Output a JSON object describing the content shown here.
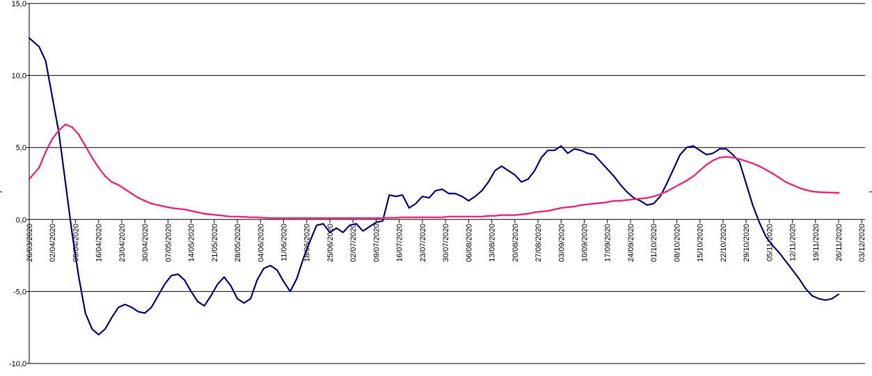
{
  "chart_data": {
    "type": "line",
    "title": "",
    "xlabel": "",
    "ylabel": "",
    "ylim": [
      -10,
      15
    ],
    "grid": "horizontal",
    "legend": "none",
    "x_range": [
      "26/03/2020",
      "04/12/2020"
    ],
    "categories": [
      "26/03/2020",
      "02/04/2020",
      "09/04/2020",
      "16/04/2020",
      "23/04/2020",
      "30/04/2020",
      "07/05/2020",
      "14/05/2020",
      "21/05/2020",
      "28/05/2020",
      "04/06/2020",
      "11/06/2020",
      "18/06/2020",
      "25/06/2020",
      "02/07/2020",
      "09/07/2020",
      "16/07/2020",
      "23/07/2020",
      "30/07/2020",
      "06/08/2020",
      "13/08/2020",
      "20/08/2020",
      "27/08/2020",
      "03/09/2020",
      "10/09/2020",
      "17/09/2020",
      "24/09/2020",
      "01/10/2020",
      "08/10/2020",
      "15/10/2020",
      "22/10/2020",
      "29/10/2020",
      "05/11/2020",
      "12/11/2020",
      "19/11/2020",
      "26/11/2020",
      "03/12/2020"
    ],
    "y_ticks": [
      "15,0",
      "10,0",
      "5,0",
      "0,0",
      "-5,0",
      "-10,0"
    ],
    "y_tick_values": [
      15,
      10,
      5,
      0,
      -5,
      -10
    ],
    "colors": {
      "series_a": "#000080",
      "series_b": "#ee2a7b",
      "grid": "#000000"
    },
    "series": [
      {
        "color": "#000080",
        "points": [
          [
            "26/03/2020",
            12.6
          ],
          [
            "29/03/2020",
            12.0
          ],
          [
            "31/03/2020",
            11.0
          ],
          [
            "02/04/2020",
            8.5
          ],
          [
            "04/04/2020",
            6.0
          ],
          [
            "06/04/2020",
            2.5
          ],
          [
            "08/04/2020",
            -1.0
          ],
          [
            "10/04/2020",
            -4.0
          ],
          [
            "12/04/2020",
            -6.5
          ],
          [
            "14/04/2020",
            -7.6
          ],
          [
            "16/04/2020",
            -8.0
          ],
          [
            "18/04/2020",
            -7.6
          ],
          [
            "20/04/2020",
            -6.8
          ],
          [
            "22/04/2020",
            -6.1
          ],
          [
            "24/04/2020",
            -5.9
          ],
          [
            "26/04/2020",
            -6.1
          ],
          [
            "28/04/2020",
            -6.4
          ],
          [
            "30/04/2020",
            -6.5
          ],
          [
            "02/05/2020",
            -6.1
          ],
          [
            "04/05/2020",
            -5.3
          ],
          [
            "06/05/2020",
            -4.5
          ],
          [
            "08/05/2020",
            -3.9
          ],
          [
            "10/05/2020",
            -3.8
          ],
          [
            "12/05/2020",
            -4.2
          ],
          [
            "14/05/2020",
            -5.0
          ],
          [
            "16/05/2020",
            -5.7
          ],
          [
            "18/05/2020",
            -6.0
          ],
          [
            "20/05/2020",
            -5.3
          ],
          [
            "22/05/2020",
            -4.5
          ],
          [
            "24/05/2020",
            -4.0
          ],
          [
            "26/05/2020",
            -4.6
          ],
          [
            "28/05/2020",
            -5.5
          ],
          [
            "30/05/2020",
            -5.8
          ],
          [
            "01/06/2020",
            -5.5
          ],
          [
            "03/06/2020",
            -4.2
          ],
          [
            "05/06/2020",
            -3.4
          ],
          [
            "07/06/2020",
            -3.2
          ],
          [
            "09/06/2020",
            -3.5
          ],
          [
            "11/06/2020",
            -4.3
          ],
          [
            "13/06/2020",
            -5.0
          ],
          [
            "15/06/2020",
            -4.1
          ],
          [
            "17/06/2020",
            -2.7
          ],
          [
            "19/06/2020",
            -1.5
          ],
          [
            "21/06/2020",
            -0.4
          ],
          [
            "23/06/2020",
            -0.3
          ],
          [
            "25/06/2020",
            -0.9
          ],
          [
            "27/06/2020",
            -0.6
          ],
          [
            "29/06/2020",
            -0.9
          ],
          [
            "01/07/2020",
            -0.4
          ],
          [
            "03/07/2020",
            -0.3
          ],
          [
            "05/07/2020",
            -0.8
          ],
          [
            "07/07/2020",
            -0.5
          ],
          [
            "09/07/2020",
            -0.2
          ],
          [
            "11/07/2020",
            -0.1
          ],
          [
            "13/07/2020",
            1.7
          ],
          [
            "15/07/2020",
            1.6
          ],
          [
            "17/07/2020",
            1.7
          ],
          [
            "19/07/2020",
            0.8
          ],
          [
            "21/07/2020",
            1.1
          ],
          [
            "23/07/2020",
            1.6
          ],
          [
            "25/07/2020",
            1.5
          ],
          [
            "27/07/2020",
            2.0
          ],
          [
            "29/07/2020",
            2.1
          ],
          [
            "31/07/2020",
            1.8
          ],
          [
            "02/08/2020",
            1.8
          ],
          [
            "04/08/2020",
            1.6
          ],
          [
            "06/08/2020",
            1.3
          ],
          [
            "08/08/2020",
            1.6
          ],
          [
            "10/08/2020",
            2.0
          ],
          [
            "12/08/2020",
            2.6
          ],
          [
            "14/08/2020",
            3.4
          ],
          [
            "16/08/2020",
            3.7
          ],
          [
            "18/08/2020",
            3.4
          ],
          [
            "20/08/2020",
            3.1
          ],
          [
            "22/08/2020",
            2.6
          ],
          [
            "24/08/2020",
            2.8
          ],
          [
            "26/08/2020",
            3.4
          ],
          [
            "28/08/2020",
            4.3
          ],
          [
            "30/08/2020",
            4.8
          ],
          [
            "01/09/2020",
            4.8
          ],
          [
            "03/09/2020",
            5.1
          ],
          [
            "05/09/2020",
            4.6
          ],
          [
            "07/09/2020",
            4.9
          ],
          [
            "09/09/2020",
            4.8
          ],
          [
            "11/09/2020",
            4.6
          ],
          [
            "13/09/2020",
            4.5
          ],
          [
            "15/09/2020",
            4.0
          ],
          [
            "17/09/2020",
            3.5
          ],
          [
            "19/09/2020",
            3.0
          ],
          [
            "21/09/2020",
            2.4
          ],
          [
            "23/09/2020",
            1.9
          ],
          [
            "25/09/2020",
            1.5
          ],
          [
            "27/09/2020",
            1.3
          ],
          [
            "29/09/2020",
            1.0
          ],
          [
            "01/10/2020",
            1.1
          ],
          [
            "03/10/2020",
            1.6
          ],
          [
            "05/10/2020",
            2.5
          ],
          [
            "07/10/2020",
            3.5
          ],
          [
            "09/10/2020",
            4.5
          ],
          [
            "11/10/2020",
            5.0
          ],
          [
            "13/10/2020",
            5.1
          ],
          [
            "15/10/2020",
            4.8
          ],
          [
            "17/10/2020",
            4.5
          ],
          [
            "19/10/2020",
            4.6
          ],
          [
            "21/10/2020",
            4.9
          ],
          [
            "23/10/2020",
            4.9
          ],
          [
            "25/10/2020",
            4.5
          ],
          [
            "27/10/2020",
            4.0
          ],
          [
            "29/10/2020",
            2.5
          ],
          [
            "31/10/2020",
            1.0
          ],
          [
            "02/11/2020",
            -0.2
          ],
          [
            "04/11/2020",
            -1.2
          ],
          [
            "06/11/2020",
            -1.8
          ],
          [
            "08/11/2020",
            -2.3
          ],
          [
            "10/11/2020",
            -2.9
          ],
          [
            "12/11/2020",
            -3.5
          ],
          [
            "14/11/2020",
            -4.1
          ],
          [
            "16/11/2020",
            -4.8
          ],
          [
            "18/11/2020",
            -5.3
          ],
          [
            "20/11/2020",
            -5.5
          ],
          [
            "22/11/2020",
            -5.6
          ],
          [
            "24/11/2020",
            -5.5
          ],
          [
            "26/11/2020",
            -5.2
          ]
        ]
      },
      {
        "color": "#ee2a7b",
        "points": [
          [
            "26/03/2020",
            2.8
          ],
          [
            "29/03/2020",
            3.6
          ],
          [
            "31/03/2020",
            4.7
          ],
          [
            "02/04/2020",
            5.6
          ],
          [
            "04/04/2020",
            6.2
          ],
          [
            "06/04/2020",
            6.6
          ],
          [
            "08/04/2020",
            6.4
          ],
          [
            "10/04/2020",
            5.9
          ],
          [
            "12/04/2020",
            5.1
          ],
          [
            "14/04/2020",
            4.3
          ],
          [
            "16/04/2020",
            3.6
          ],
          [
            "18/04/2020",
            3.0
          ],
          [
            "20/04/2020",
            2.6
          ],
          [
            "22/04/2020",
            2.4
          ],
          [
            "24/04/2020",
            2.1
          ],
          [
            "26/04/2020",
            1.8
          ],
          [
            "28/04/2020",
            1.5
          ],
          [
            "30/04/2020",
            1.3
          ],
          [
            "02/05/2020",
            1.1
          ],
          [
            "04/05/2020",
            1.0
          ],
          [
            "06/05/2020",
            0.9
          ],
          [
            "08/05/2020",
            0.8
          ],
          [
            "10/05/2020",
            0.75
          ],
          [
            "12/05/2020",
            0.7
          ],
          [
            "14/05/2020",
            0.6
          ],
          [
            "16/05/2020",
            0.5
          ],
          [
            "18/05/2020",
            0.4
          ],
          [
            "20/05/2020",
            0.35
          ],
          [
            "22/05/2020",
            0.3
          ],
          [
            "24/05/2020",
            0.25
          ],
          [
            "26/05/2020",
            0.2
          ],
          [
            "28/05/2020",
            0.2
          ],
          [
            "30/05/2020",
            0.18
          ],
          [
            "01/06/2020",
            0.15
          ],
          [
            "03/06/2020",
            0.15
          ],
          [
            "05/06/2020",
            0.12
          ],
          [
            "07/06/2020",
            0.1
          ],
          [
            "09/06/2020",
            0.1
          ],
          [
            "11/06/2020",
            0.1
          ],
          [
            "13/06/2020",
            0.1
          ],
          [
            "15/06/2020",
            0.1
          ],
          [
            "17/06/2020",
            0.1
          ],
          [
            "19/06/2020",
            0.1
          ],
          [
            "21/06/2020",
            0.1
          ],
          [
            "23/06/2020",
            0.1
          ],
          [
            "25/06/2020",
            0.1
          ],
          [
            "27/06/2020",
            0.1
          ],
          [
            "29/06/2020",
            0.1
          ],
          [
            "01/07/2020",
            0.1
          ],
          [
            "03/07/2020",
            0.1
          ],
          [
            "05/07/2020",
            0.1
          ],
          [
            "07/07/2020",
            0.1
          ],
          [
            "09/07/2020",
            0.1
          ],
          [
            "11/07/2020",
            0.1
          ],
          [
            "13/07/2020",
            0.12
          ],
          [
            "15/07/2020",
            0.12
          ],
          [
            "17/07/2020",
            0.15
          ],
          [
            "19/07/2020",
            0.15
          ],
          [
            "21/07/2020",
            0.15
          ],
          [
            "23/07/2020",
            0.15
          ],
          [
            "25/07/2020",
            0.15
          ],
          [
            "27/07/2020",
            0.15
          ],
          [
            "29/07/2020",
            0.15
          ],
          [
            "31/07/2020",
            0.2
          ],
          [
            "02/08/2020",
            0.2
          ],
          [
            "04/08/2020",
            0.2
          ],
          [
            "06/08/2020",
            0.2
          ],
          [
            "08/08/2020",
            0.2
          ],
          [
            "10/08/2020",
            0.2
          ],
          [
            "12/08/2020",
            0.25
          ],
          [
            "14/08/2020",
            0.25
          ],
          [
            "16/08/2020",
            0.3
          ],
          [
            "18/08/2020",
            0.3
          ],
          [
            "20/08/2020",
            0.3
          ],
          [
            "22/08/2020",
            0.35
          ],
          [
            "24/08/2020",
            0.4
          ],
          [
            "26/08/2020",
            0.5
          ],
          [
            "28/08/2020",
            0.55
          ],
          [
            "30/08/2020",
            0.6
          ],
          [
            "01/09/2020",
            0.7
          ],
          [
            "03/09/2020",
            0.8
          ],
          [
            "05/09/2020",
            0.85
          ],
          [
            "07/09/2020",
            0.9
          ],
          [
            "09/09/2020",
            1.0
          ],
          [
            "11/09/2020",
            1.05
          ],
          [
            "13/09/2020",
            1.1
          ],
          [
            "15/09/2020",
            1.15
          ],
          [
            "17/09/2020",
            1.2
          ],
          [
            "19/09/2020",
            1.3
          ],
          [
            "21/09/2020",
            1.3
          ],
          [
            "23/09/2020",
            1.35
          ],
          [
            "25/09/2020",
            1.4
          ],
          [
            "27/09/2020",
            1.45
          ],
          [
            "29/09/2020",
            1.5
          ],
          [
            "01/10/2020",
            1.6
          ],
          [
            "03/10/2020",
            1.75
          ],
          [
            "05/10/2020",
            1.95
          ],
          [
            "07/10/2020",
            2.2
          ],
          [
            "09/10/2020",
            2.45
          ],
          [
            "11/10/2020",
            2.7
          ],
          [
            "13/10/2020",
            3.0
          ],
          [
            "15/10/2020",
            3.4
          ],
          [
            "17/10/2020",
            3.8
          ],
          [
            "19/10/2020",
            4.1
          ],
          [
            "21/10/2020",
            4.3
          ],
          [
            "23/10/2020",
            4.35
          ],
          [
            "25/10/2020",
            4.3
          ],
          [
            "27/10/2020",
            4.2
          ],
          [
            "29/10/2020",
            4.05
          ],
          [
            "31/10/2020",
            3.9
          ],
          [
            "02/11/2020",
            3.7
          ],
          [
            "04/11/2020",
            3.45
          ],
          [
            "06/11/2020",
            3.2
          ],
          [
            "08/11/2020",
            2.9
          ],
          [
            "10/11/2020",
            2.6
          ],
          [
            "12/11/2020",
            2.4
          ],
          [
            "14/11/2020",
            2.2
          ],
          [
            "16/11/2020",
            2.05
          ],
          [
            "18/11/2020",
            1.95
          ],
          [
            "20/11/2020",
            1.9
          ],
          [
            "22/11/2020",
            1.88
          ],
          [
            "24/11/2020",
            1.87
          ],
          [
            "26/11/2020",
            1.85
          ]
        ]
      }
    ]
  }
}
